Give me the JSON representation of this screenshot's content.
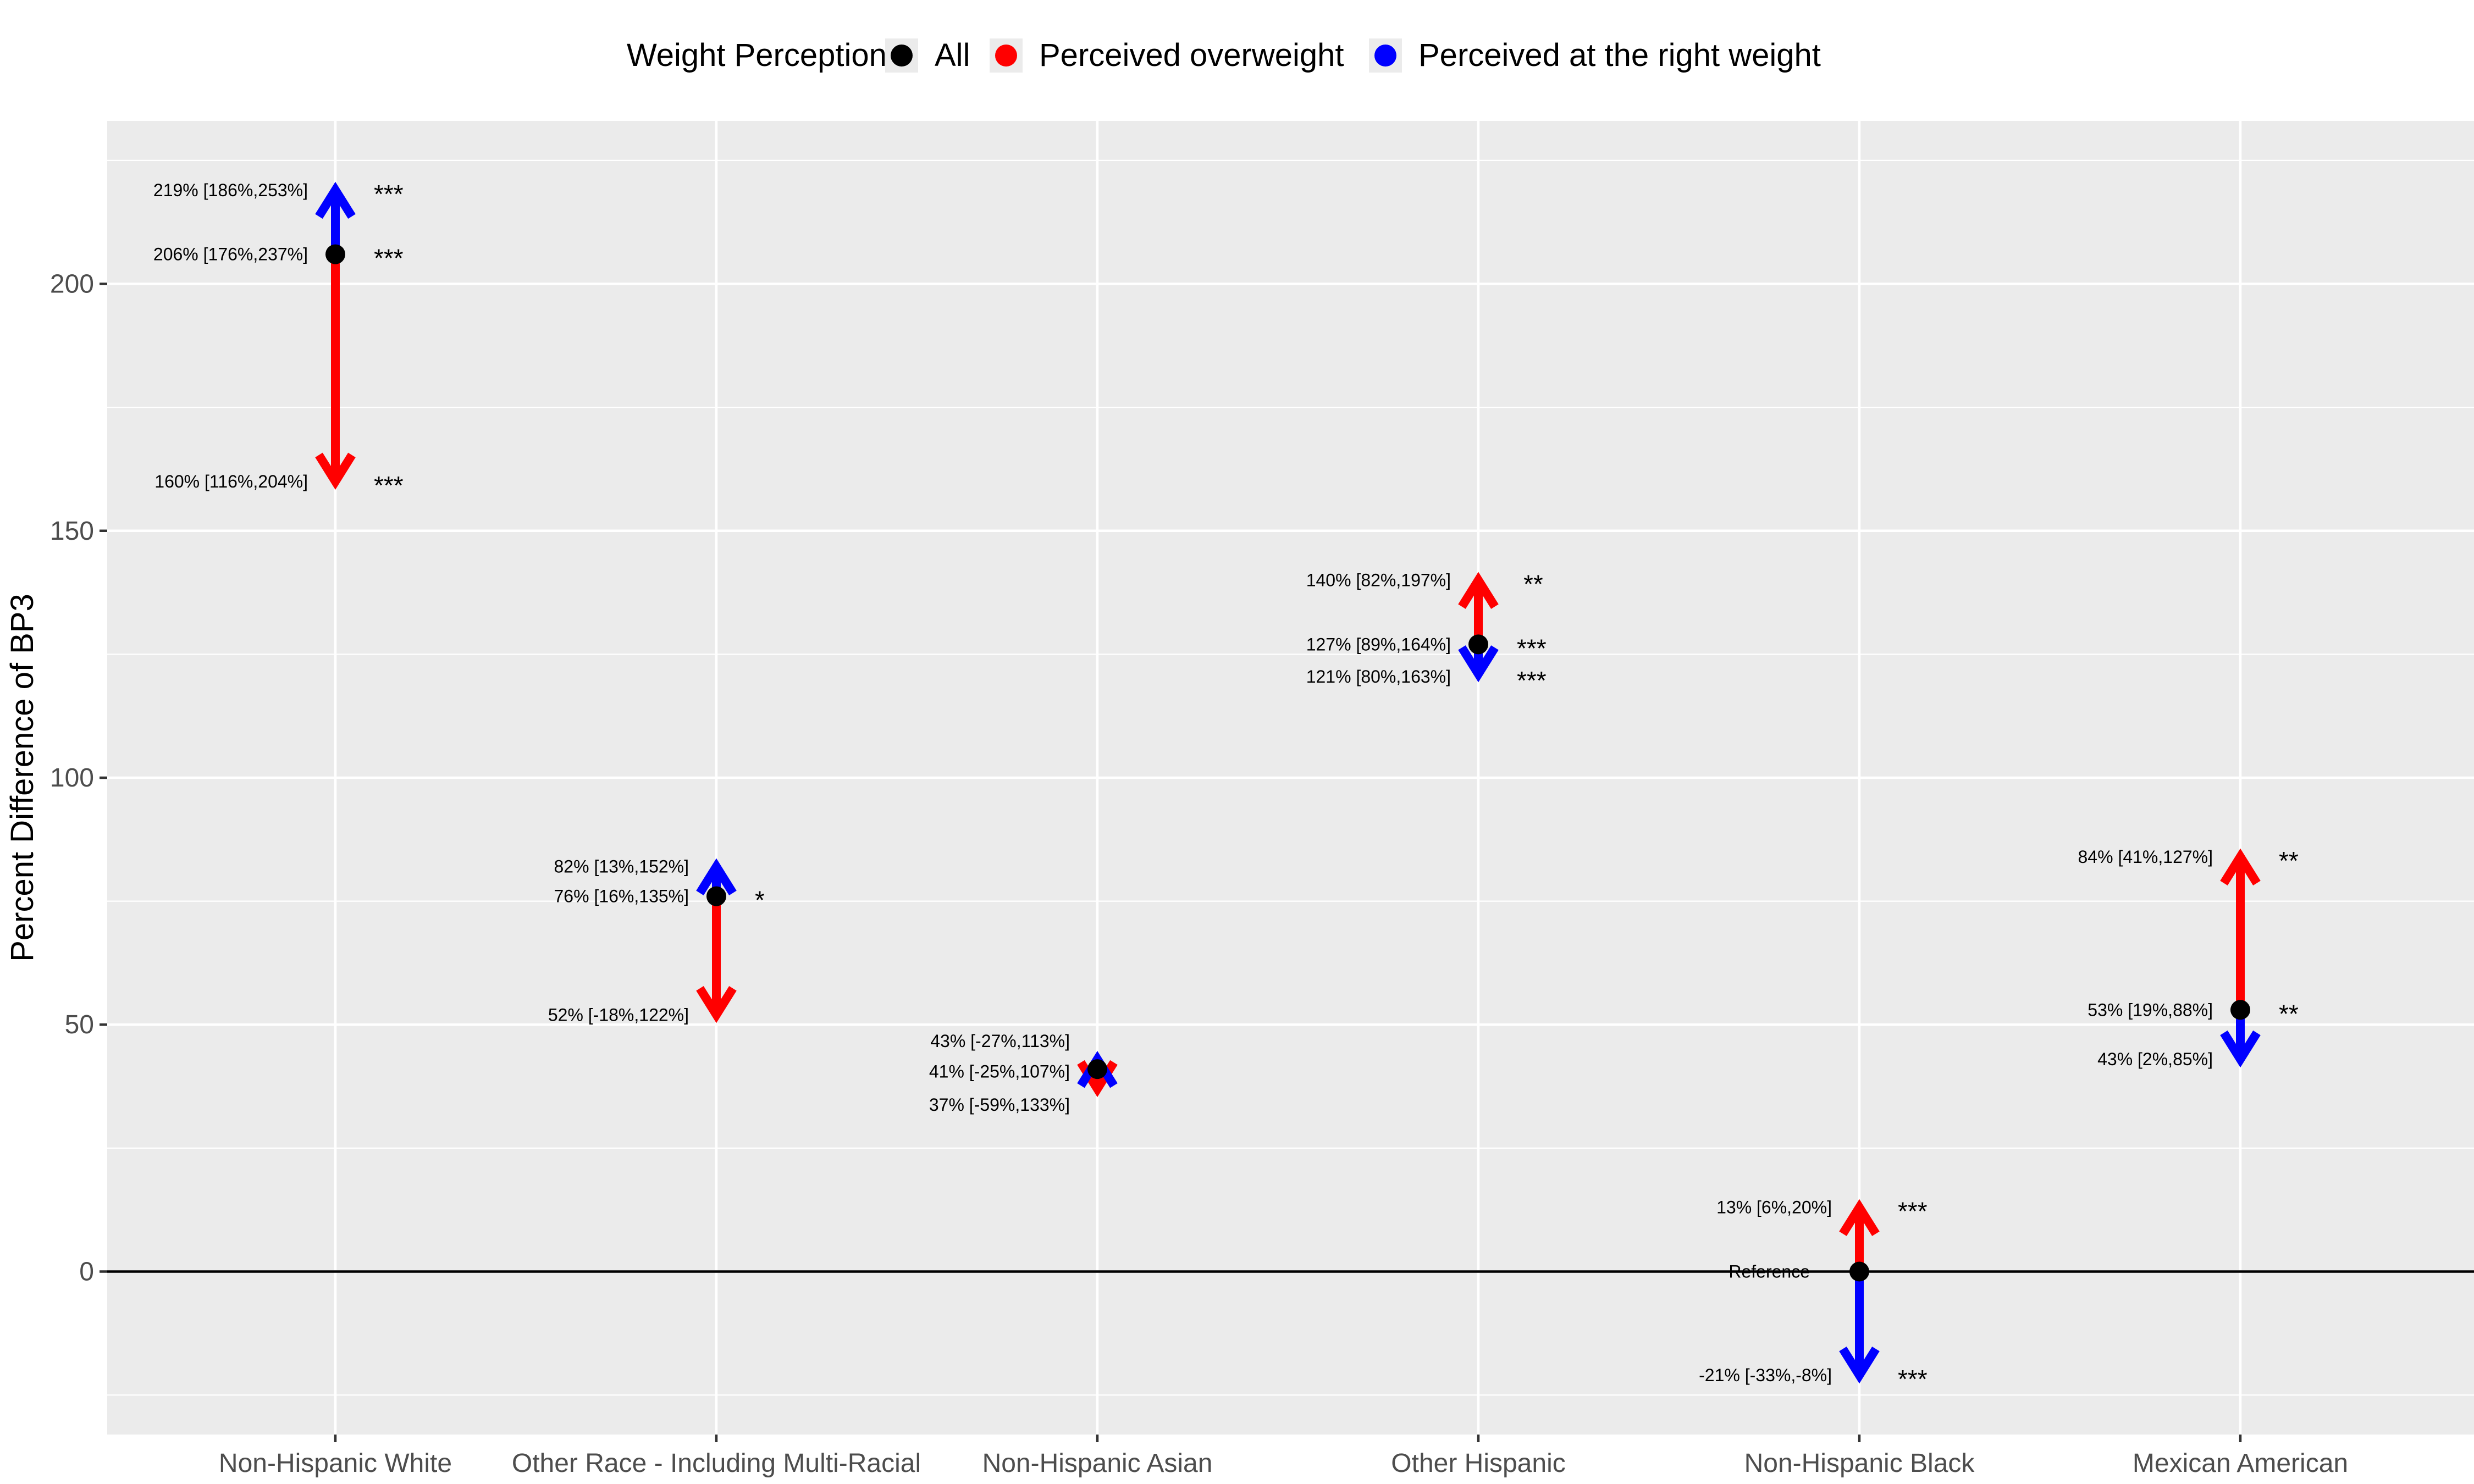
{
  "colors": {
    "All": "#000000",
    "Perceived overweight": "#ff0000",
    "Perceived at the right weight": "#0000ff",
    "panel": "#ebebeb"
  },
  "chart_data": {
    "type": "scatter",
    "title": "",
    "xlabel": "",
    "ylabel": "Percent Difference of BP3",
    "ylim": [
      -33,
      233
    ],
    "yticks": [
      0,
      50,
      100,
      150,
      200
    ],
    "grid": true,
    "legend": {
      "title": "Weight Perception",
      "position": "top",
      "entries": [
        "All",
        "Perceived overweight",
        "Perceived at the right weight"
      ]
    },
    "categories": [
      "Non-Hispanic White",
      "Other Race - Including Multi-Racial",
      "Non-Hispanic Asian",
      "Other Hispanic",
      "Non-Hispanic Black",
      "Mexican American"
    ],
    "series": [
      {
        "name": "All",
        "values": [
          206,
          76,
          41,
          127,
          0,
          53
        ],
        "labels": [
          "206% [176%,237%]",
          "76% [16%,135%]",
          "41% [-25%,107%]",
          "127% [89%,164%]",
          "Reference",
          "53% [19%,88%]"
        ],
        "stars": [
          "***",
          "*",
          "",
          "***",
          "",
          "**"
        ]
      },
      {
        "name": "Perceived overweight",
        "values": [
          160,
          52,
          37,
          140,
          13,
          84
        ],
        "labels": [
          "160% [116%,204%]",
          "52% [-18%,122%]",
          "37% [-59%,133%]",
          "140% [82%,197%]",
          "13% [6%,20%]",
          "84% [41%,127%]"
        ],
        "stars": [
          "***",
          "",
          "",
          "**",
          "***",
          "**"
        ]
      },
      {
        "name": "Perceived at the right weight",
        "values": [
          219,
          82,
          43,
          121,
          -21,
          43
        ],
        "labels": [
          "219% [186%,253%]",
          "82% [13%,152%]",
          "43% [-27%,113%]",
          "121% [80%,163%]",
          "-21% [-33%,-8%]",
          "43% [2%,85%]"
        ],
        "stars": [
          "***",
          "",
          "",
          "***",
          "***",
          ""
        ]
      }
    ]
  }
}
